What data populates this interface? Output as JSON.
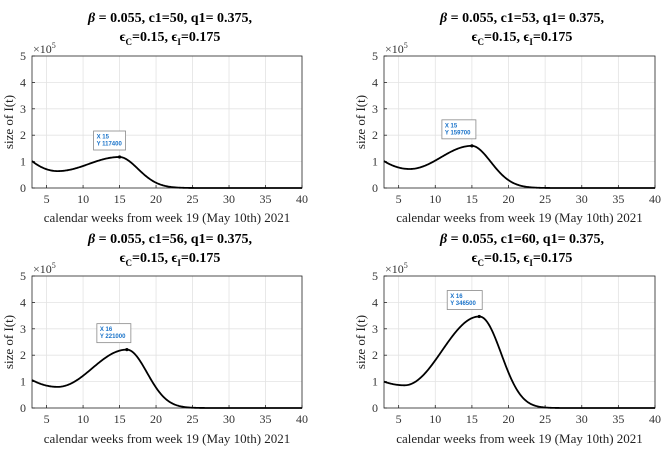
{
  "chart_data": [
    {
      "type": "line",
      "title_line1": {
        "beta": "β",
        "text": " = 0.055, c1=50, q1= 0.375,"
      },
      "title_line2": {
        "e1": "ϵ",
        "s1": "C",
        "m": "=0.15, ",
        "e2": "ϵ",
        "s2": "I",
        "t": "=0.175"
      },
      "xlabel": "calendar weeks from week 19 (May 10th) 2021",
      "ylabel": "size of I(t)",
      "y_exponent": {
        "base": "×10",
        "power": "5"
      },
      "xlim": [
        3,
        40
      ],
      "ylim": [
        0,
        5
      ],
      "xticks": [
        "5",
        "10",
        "15",
        "20",
        "25",
        "30",
        "35",
        "40"
      ],
      "yticks": [
        "0",
        "1",
        "2",
        "3",
        "4",
        "5"
      ],
      "grid": true,
      "curve": {
        "start_value": 1.02,
        "valley_x": 6.5,
        "valley_value": 0.64,
        "peak_x": 15,
        "peak_value": 1.174,
        "width": 3.7,
        "tail_decay": 1.9
      },
      "datatip": {
        "x_label": "X 15",
        "y_label": "Y 117400"
      }
    },
    {
      "type": "line",
      "title_line1": {
        "beta": "β",
        "text": " = 0.055, c1=53, q1= 0.375,"
      },
      "title_line2": {
        "e1": "ϵ",
        "s1": "C",
        "m": "=0.15, ",
        "e2": "ϵ",
        "s2": "I",
        "t": "=0.175"
      },
      "xlabel": "calendar weeks from week 19 (May 10th) 2021",
      "ylabel": "size of I(t)",
      "y_exponent": {
        "base": "×10",
        "power": "5"
      },
      "xlim": [
        3,
        40
      ],
      "ylim": [
        0,
        5
      ],
      "xticks": [
        "5",
        "10",
        "15",
        "20",
        "25",
        "30",
        "35",
        "40"
      ],
      "yticks": [
        "0",
        "1",
        "2",
        "3",
        "4",
        "5"
      ],
      "grid": true,
      "curve": {
        "start_value": 1.02,
        "valley_x": 6.5,
        "valley_value": 0.72,
        "peak_x": 15,
        "peak_value": 1.597,
        "width": 3.8,
        "tail_decay": 1.9
      },
      "datatip": {
        "x_label": "X 15",
        "y_label": "Y 159700"
      }
    },
    {
      "type": "line",
      "title_line1": {
        "beta": "β",
        "text": " = 0.055, c1=56, q1= 0.375,"
      },
      "title_line2": {
        "e1": "ϵ",
        "s1": "C",
        "m": "=0.15, ",
        "e2": "ϵ",
        "s2": "I",
        "t": "=0.175"
      },
      "xlabel": "calendar weeks from week 19 (May 10th) 2021",
      "ylabel": "size of I(t)",
      "y_exponent": {
        "base": "×10",
        "power": "5"
      },
      "xlim": [
        3,
        40
      ],
      "ylim": [
        0,
        5
      ],
      "xticks": [
        "5",
        "10",
        "15",
        "20",
        "25",
        "30",
        "35",
        "40"
      ],
      "yticks": [
        "0",
        "1",
        "2",
        "3",
        "4",
        "5"
      ],
      "grid": true,
      "curve": {
        "start_value": 1.06,
        "valley_x": 6.5,
        "valley_value": 0.8,
        "peak_x": 16,
        "peak_value": 2.21,
        "width": 3.9,
        "tail_decay": 2.0
      },
      "datatip": {
        "x_label": "X 16",
        "y_label": "Y 221000"
      }
    },
    {
      "type": "line",
      "title_line1": {
        "beta": "β",
        "text": " = 0.055, c1=60, q1= 0.375,"
      },
      "title_line2": {
        "e1": "ϵ",
        "s1": "C",
        "m": "=0.15, ",
        "e2": "ϵ",
        "s2": "I",
        "t": "=0.175"
      },
      "xlabel": "calendar weeks from week 19 (May 10th) 2021",
      "ylabel": "size of I(t)",
      "y_exponent": {
        "base": "×10",
        "power": "5"
      },
      "xlim": [
        3,
        40
      ],
      "ylim": [
        0,
        5
      ],
      "xticks": [
        "5",
        "10",
        "15",
        "20",
        "25",
        "30",
        "35",
        "40"
      ],
      "yticks": [
        "0",
        "1",
        "2",
        "3",
        "4",
        "5"
      ],
      "grid": true,
      "curve": {
        "start_value": 1.0,
        "valley_x": 5.8,
        "valley_value": 0.86,
        "peak_x": 16,
        "peak_value": 3.465,
        "width": 4.1,
        "tail_decay": 2.1
      },
      "datatip": {
        "x_label": "X 16",
        "y_label": "Y 346500"
      }
    }
  ]
}
